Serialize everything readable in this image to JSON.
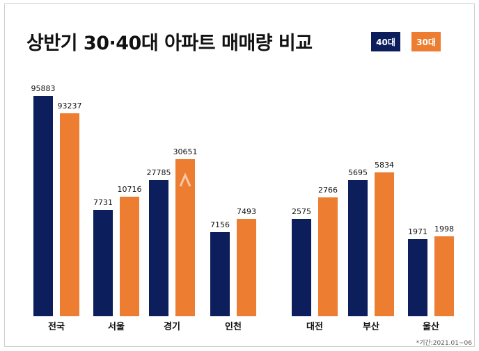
{
  "chart_data": {
    "type": "bar",
    "title": "상반기 30·40대 아파트 매매량 비교",
    "categories": [
      "전국",
      "서울",
      "경기",
      "인천",
      "대전",
      "부산",
      "울산"
    ],
    "series": [
      {
        "name": "40대",
        "color": "#0c1f5c",
        "values": [
          95883,
          7731,
          27785,
          7156,
          2575,
          5695,
          1971
        ]
      },
      {
        "name": "30대",
        "color": "#ed7d31",
        "values": [
          93237,
          10716,
          30651,
          7493,
          2766,
          5834,
          1998
        ]
      }
    ],
    "axis": "broken",
    "legend": "top-right",
    "grid": false,
    "footnote": "*기간:2021.01~06"
  }
}
